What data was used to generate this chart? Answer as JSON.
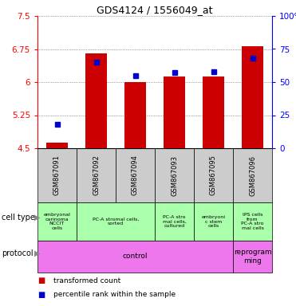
{
  "title": "GDS4124 / 1556049_at",
  "samples": [
    "GSM867091",
    "GSM867092",
    "GSM867094",
    "GSM867093",
    "GSM867095",
    "GSM867096"
  ],
  "transformed_counts": [
    4.63,
    6.65,
    6.0,
    6.12,
    6.12,
    6.82
  ],
  "percentile_ranks": [
    18,
    65,
    55,
    57,
    58,
    68
  ],
  "y_min": 4.5,
  "y_max": 7.5,
  "y_ticks": [
    4.5,
    5.25,
    6.0,
    6.75,
    7.5
  ],
  "y_tick_labels": [
    "4.5",
    "5.25",
    "6",
    "6.75",
    "7.5"
  ],
  "right_y_ticks": [
    0,
    25,
    50,
    75,
    100
  ],
  "right_y_tick_labels": [
    "0",
    "25",
    "50",
    "75",
    "100%"
  ],
  "bar_color": "#cc0000",
  "dot_color": "#0000cc",
  "bg_color": "#ffffff",
  "grid_color": "#555555",
  "sample_bg_color": "#cccccc",
  "cell_type_color": "#aaffaa",
  "protocol_color": "#ee77ee",
  "ct_spans": [
    [
      0,
      1,
      "embryonal\ncarinoma\nNCCIT\ncells"
    ],
    [
      1,
      3,
      "PC-A stromal cells,\nsorted"
    ],
    [
      3,
      4,
      "PC-A stro\nmal cells,\ncultured"
    ],
    [
      4,
      5,
      "embryoni\nc stem\ncells"
    ],
    [
      5,
      6,
      "IPS cells\nfrom\nPC-A stro\nmal cells"
    ]
  ],
  "proto_spans": [
    [
      0,
      5,
      "control"
    ],
    [
      5,
      6,
      "reprogram\nming"
    ]
  ]
}
